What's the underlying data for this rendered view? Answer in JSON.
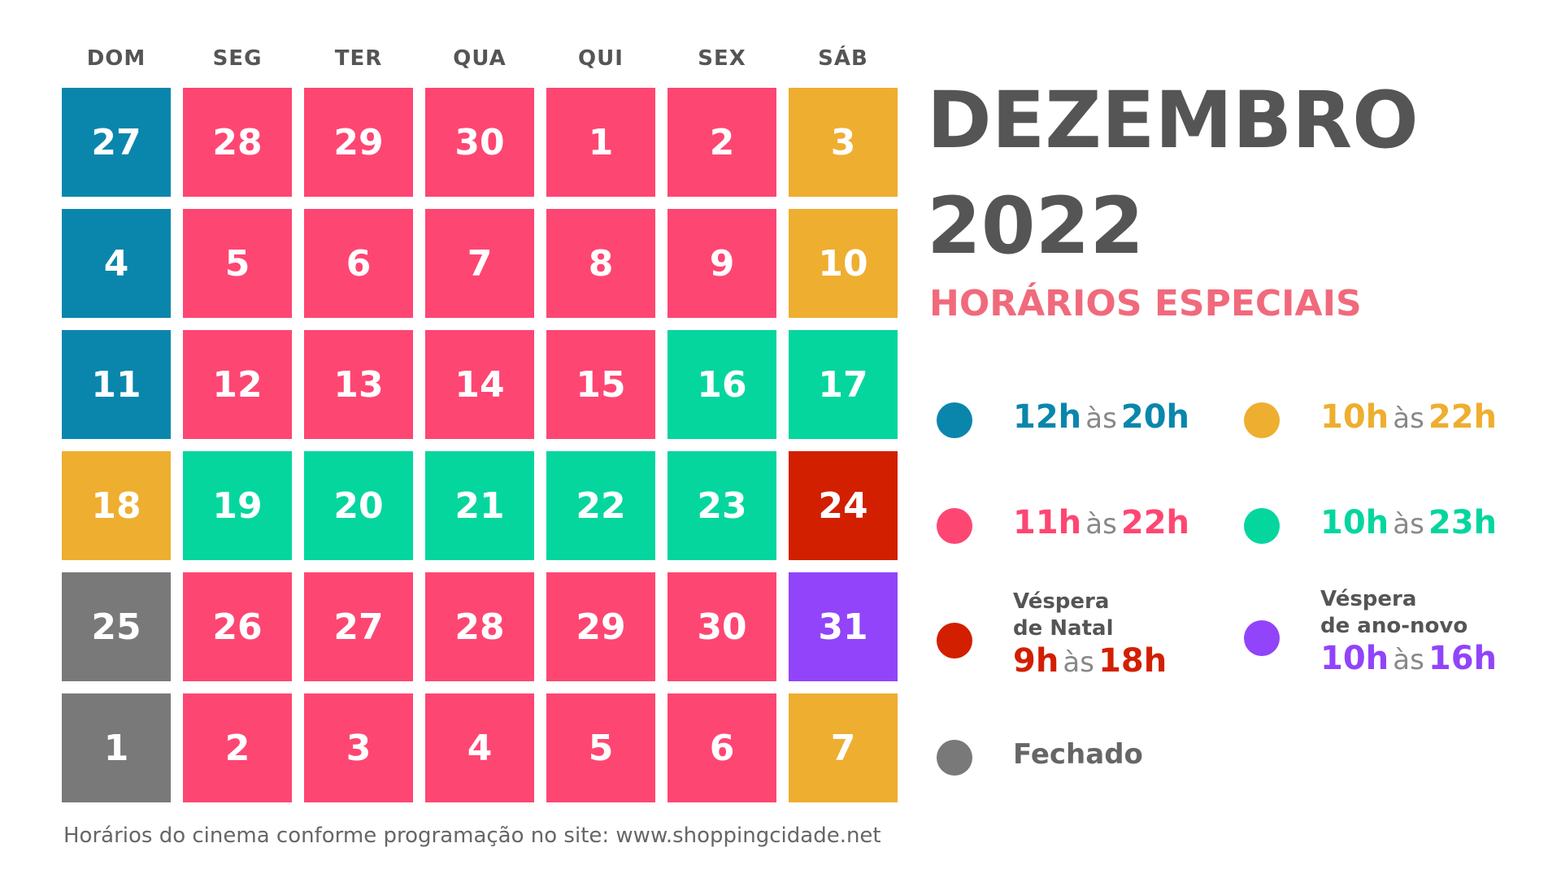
{
  "colors": {
    "blue": "#0a86ac",
    "pink": "#fe4672",
    "yellow": "#eeae2f",
    "green": "#04d69e",
    "red": "#d21f00",
    "purple": "#9144fa",
    "gray": "#797979"
  },
  "weekdays": [
    "DOM",
    "SEG",
    "TER",
    "QUA",
    "QUI",
    "SEX",
    "SÁB"
  ],
  "calendar": [
    [
      {
        "day": "27",
        "color": "blue"
      },
      {
        "day": "28",
        "color": "pink"
      },
      {
        "day": "29",
        "color": "pink"
      },
      {
        "day": "30",
        "color": "pink"
      },
      {
        "day": "1",
        "color": "pink"
      },
      {
        "day": "2",
        "color": "pink"
      },
      {
        "day": "3",
        "color": "yellow"
      }
    ],
    [
      {
        "day": "4",
        "color": "blue"
      },
      {
        "day": "5",
        "color": "pink"
      },
      {
        "day": "6",
        "color": "pink"
      },
      {
        "day": "7",
        "color": "pink"
      },
      {
        "day": "8",
        "color": "pink"
      },
      {
        "day": "9",
        "color": "pink"
      },
      {
        "day": "10",
        "color": "yellow"
      }
    ],
    [
      {
        "day": "11",
        "color": "blue"
      },
      {
        "day": "12",
        "color": "pink"
      },
      {
        "day": "13",
        "color": "pink"
      },
      {
        "day": "14",
        "color": "pink"
      },
      {
        "day": "15",
        "color": "pink"
      },
      {
        "day": "16",
        "color": "green"
      },
      {
        "day": "17",
        "color": "green"
      }
    ],
    [
      {
        "day": "18",
        "color": "yellow"
      },
      {
        "day": "19",
        "color": "green"
      },
      {
        "day": "20",
        "color": "green"
      },
      {
        "day": "21",
        "color": "green"
      },
      {
        "day": "22",
        "color": "green"
      },
      {
        "day": "23",
        "color": "green"
      },
      {
        "day": "24",
        "color": "red"
      }
    ],
    [
      {
        "day": "25",
        "color": "gray"
      },
      {
        "day": "26",
        "color": "pink"
      },
      {
        "day": "27",
        "color": "pink"
      },
      {
        "day": "28",
        "color": "pink"
      },
      {
        "day": "29",
        "color": "pink"
      },
      {
        "day": "30",
        "color": "pink"
      },
      {
        "day": "31",
        "color": "purple"
      }
    ],
    [
      {
        "day": "1",
        "color": "gray"
      },
      {
        "day": "2",
        "color": "pink"
      },
      {
        "day": "3",
        "color": "pink"
      },
      {
        "day": "4",
        "color": "pink"
      },
      {
        "day": "5",
        "color": "pink"
      },
      {
        "day": "6",
        "color": "pink"
      },
      {
        "day": "7",
        "color": "yellow"
      }
    ]
  ],
  "header": {
    "month": "DEZEMBRO",
    "year": "2022",
    "subtitle": "HORÁRIOS ESPECIAIS"
  },
  "legend": [
    {
      "color": "blue",
      "open": "12h",
      "sep": "às",
      "close": "20h"
    },
    {
      "color": "yellow",
      "open": "10h",
      "sep": "às",
      "close": "22h"
    },
    {
      "color": "pink",
      "open": "11h",
      "sep": "às",
      "close": "22h"
    },
    {
      "color": "green",
      "open": "10h",
      "sep": "às",
      "close": "23h"
    },
    {
      "color": "red",
      "note1": "Véspera",
      "note2": "de Natal",
      "open": "9h",
      "sep": "às",
      "close": "18h"
    },
    {
      "color": "purple",
      "note1": "Véspera",
      "note2": "de ano-novo",
      "open": "10h",
      "sep": "às",
      "close": "16h"
    },
    {
      "color": "gray",
      "label": "Fechado"
    }
  ],
  "footer": "Horários do cinema conforme programação no site: www.shoppingcidade.net"
}
